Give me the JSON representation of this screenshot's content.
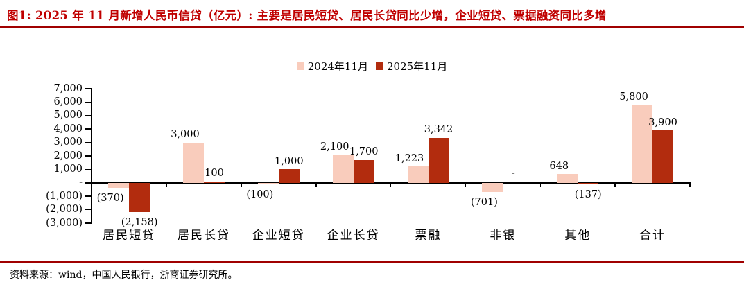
{
  "figure": {
    "title": "图1:  2025 年 11 月新增人民币信贷（亿元）: 主要是居民短贷、居民长贷同比少增，企业短贷、票据融资同比多增",
    "source": "资料来源：wind，中国人民银行，浙商证券研究所。"
  },
  "colors": {
    "title_red": "#C00000",
    "rule_red": "#A00000",
    "axis": "#000000",
    "bottom_line": "#4A4A4A",
    "series_2024": "#F9CCBC",
    "series_2025": "#B22C0E"
  },
  "chart_data": {
    "type": "bar",
    "title": "2025年11月新增人民币信贷（亿元）",
    "xlabel": "",
    "ylabel": "",
    "ylim": [
      -3000,
      7000
    ],
    "grid": false,
    "legend_position": "top-center",
    "categories": [
      "居民短贷",
      "居民长贷",
      "企业短贷",
      "企业长贷",
      "票融",
      "非银",
      "其他",
      "合计"
    ],
    "series": [
      {
        "key": "2024",
        "name": "2024年11月",
        "color": "#F9CCBC",
        "values": [
          -370,
          3000,
          -100,
          2100,
          1223,
          -701,
          648,
          5800
        ]
      },
      {
        "key": "2025",
        "name": "2025年11月",
        "color": "#B22C0E",
        "values": [
          -2158,
          100,
          1000,
          1700,
          3342,
          0,
          -137,
          3900
        ]
      }
    ],
    "data_labels": [
      [
        "(370)",
        "3,000",
        "(100)",
        "2,100",
        "1,223",
        "(701)",
        "648",
        "5,800"
      ],
      [
        "(2,158)",
        "100",
        "1,000",
        "1,700",
        "3,342",
        "-",
        "(137)",
        "3,900"
      ]
    ],
    "y_ticks": [
      "7,000",
      "6,000",
      "5,000",
      "4,000",
      "3,000",
      "2,000",
      "1,000",
      "-",
      "(1,000)",
      "(2,000)",
      "(3,000)"
    ]
  }
}
